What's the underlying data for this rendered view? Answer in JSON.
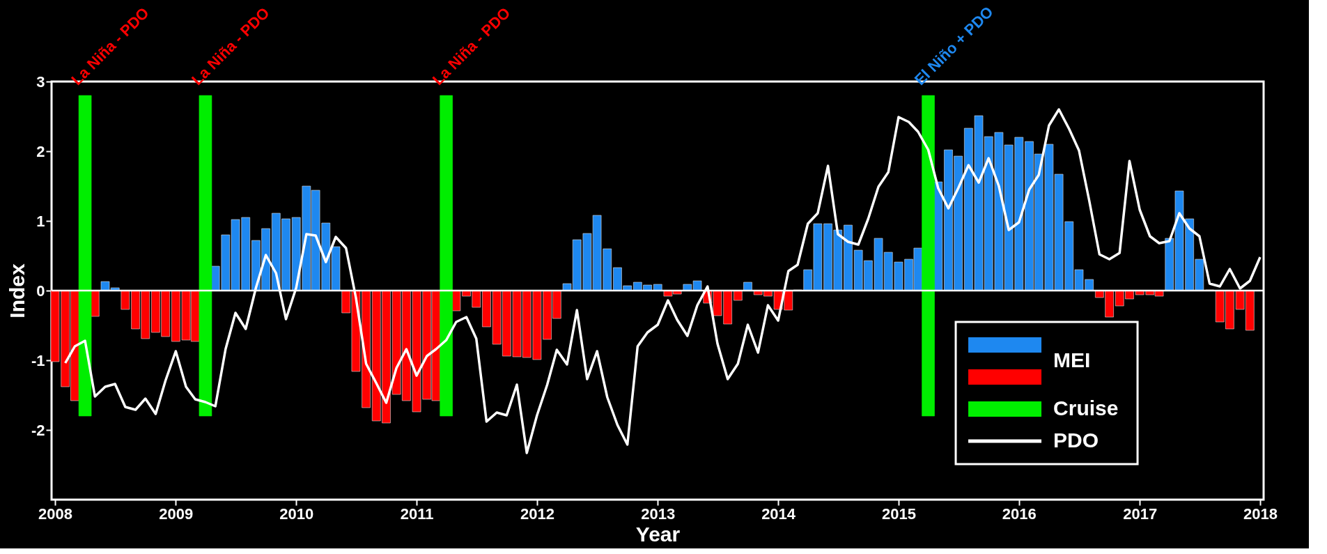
{
  "chart_data": {
    "type": "bar",
    "xlabel": "Year",
    "ylabel": "Index",
    "x": [
      "2008-01",
      "2008-02",
      "2008-03",
      "2008-04",
      "2008-05",
      "2008-06",
      "2008-07",
      "2008-08",
      "2008-09",
      "2008-10",
      "2008-11",
      "2008-12",
      "2009-01",
      "2009-02",
      "2009-03",
      "2009-04",
      "2009-05",
      "2009-06",
      "2009-07",
      "2009-08",
      "2009-09",
      "2009-10",
      "2009-11",
      "2009-12",
      "2010-01",
      "2010-02",
      "2010-03",
      "2010-04",
      "2010-05",
      "2010-06",
      "2010-07",
      "2010-08",
      "2010-09",
      "2010-10",
      "2010-11",
      "2010-12",
      "2011-01",
      "2011-02",
      "2011-03",
      "2011-04",
      "2011-05",
      "2011-06",
      "2011-07",
      "2011-08",
      "2011-09",
      "2011-10",
      "2011-11",
      "2011-12",
      "2012-01",
      "2012-02",
      "2012-03",
      "2012-04",
      "2012-05",
      "2012-06",
      "2012-07",
      "2012-08",
      "2012-09",
      "2012-10",
      "2012-11",
      "2012-12",
      "2013-01",
      "2013-02",
      "2013-03",
      "2013-04",
      "2013-05",
      "2013-06",
      "2013-07",
      "2013-08",
      "2013-09",
      "2013-10",
      "2013-11",
      "2013-12",
      "2014-01",
      "2014-02",
      "2014-03",
      "2014-04",
      "2014-05",
      "2014-06",
      "2014-07",
      "2014-08",
      "2014-09",
      "2014-10",
      "2014-11",
      "2014-12",
      "2015-01",
      "2015-02",
      "2015-03",
      "2015-04",
      "2015-05",
      "2015-06",
      "2015-07",
      "2015-08",
      "2015-09",
      "2015-10",
      "2015-11",
      "2015-12",
      "2016-01",
      "2016-02",
      "2016-03",
      "2016-04",
      "2016-05",
      "2016-06",
      "2016-07",
      "2016-08",
      "2016-09",
      "2016-10",
      "2016-11",
      "2016-12",
      "2017-01",
      "2017-02",
      "2017-03",
      "2017-04",
      "2017-05",
      "2017-06",
      "2017-07",
      "2017-08",
      "2017-09",
      "2017-10",
      "2017-11",
      "2017-12",
      "2018-01"
    ],
    "series": [
      {
        "name": "MEI",
        "color": "#1e88f0",
        "values": [
          null,
          null,
          null,
          null,
          null,
          0.13,
          0.04,
          null,
          null,
          null,
          null,
          null,
          null,
          null,
          null,
          null,
          0.35,
          0.8,
          1.02,
          1.05,
          0.72,
          0.89,
          1.11,
          1.03,
          1.05,
          1.5,
          1.44,
          0.97,
          0.63,
          null,
          null,
          null,
          null,
          null,
          null,
          null,
          null,
          null,
          null,
          null,
          null,
          null,
          null,
          null,
          null,
          null,
          null,
          null,
          null,
          null,
          null,
          0.1,
          0.73,
          0.82,
          1.08,
          0.6,
          0.33,
          0.07,
          0.12,
          0.08,
          0.09,
          null,
          null,
          0.09,
          0.14,
          null,
          null,
          null,
          null,
          0.12,
          null,
          null,
          null,
          null,
          0.01,
          0.3,
          0.96,
          0.96,
          0.87,
          0.94,
          0.58,
          0.43,
          0.75,
          0.55,
          0.41,
          0.45,
          0.61,
          null,
          1.56,
          2.02,
          1.93,
          2.33,
          2.51,
          2.21,
          2.27,
          2.09,
          2.2,
          2.14,
          1.96,
          2.1,
          1.67,
          0.99,
          0.3,
          0.16,
          null,
          null,
          null,
          null,
          null,
          null,
          null,
          0.75,
          1.43,
          1.03,
          0.45,
          0.01,
          null,
          null,
          null,
          null,
          null
        ]
      },
      {
        "color": "#ff0000",
        "values": [
          -1.02,
          -1.38,
          -1.58,
          null,
          -0.37,
          null,
          null,
          -0.27,
          -0.55,
          -0.69,
          -0.6,
          -0.66,
          -0.73,
          -0.71,
          -0.73,
          null,
          null,
          null,
          null,
          null,
          null,
          null,
          null,
          null,
          null,
          null,
          null,
          null,
          null,
          -0.32,
          -1.16,
          -1.68,
          -1.87,
          -1.9,
          -1.49,
          -1.58,
          -1.74,
          -1.56,
          -1.58,
          null,
          -0.29,
          -0.08,
          -0.24,
          -0.52,
          -0.77,
          -0.94,
          -0.95,
          -0.96,
          -0.99,
          -0.7,
          -0.4,
          null,
          null,
          null,
          null,
          null,
          null,
          null,
          null,
          null,
          null,
          -0.08,
          -0.05,
          null,
          null,
          -0.18,
          -0.36,
          -0.48,
          -0.14,
          null,
          -0.06,
          -0.08,
          -0.27,
          -0.28,
          null,
          null,
          null,
          null,
          null,
          null,
          null,
          null,
          null,
          null,
          null,
          null,
          null,
          null,
          null,
          null,
          null,
          null,
          null,
          null,
          null,
          null,
          null,
          null,
          null,
          null,
          null,
          null,
          null,
          null,
          -0.1,
          -0.38,
          -0.22,
          -0.12,
          -0.06,
          -0.06,
          -0.08,
          null,
          null,
          null,
          null,
          null,
          -0.45,
          -0.55,
          -0.27,
          -0.57,
          null
        ]
      },
      {
        "name": "Cruise",
        "type": "bar",
        "color": "#00ee00",
        "x": [
          "2008-04",
          "2009-04",
          "2011-04",
          "2015-04"
        ],
        "base": [
          -1.8,
          -1.8,
          -1.8,
          -1.8
        ],
        "values": [
          4.6,
          4.6,
          4.6,
          4.6
        ]
      },
      {
        "name": "PDO",
        "type": "line",
        "color": "#ffffff",
        "values": [
          null,
          -1.04,
          -0.8,
          -0.72,
          -1.52,
          -1.38,
          -1.34,
          -1.67,
          -1.71,
          -1.55,
          -1.77,
          -1.29,
          -0.87,
          -1.38,
          -1.56,
          -1.6,
          -1.66,
          -0.84,
          -0.32,
          -0.55,
          0.04,
          0.51,
          0.25,
          -0.41,
          0.04,
          0.81,
          0.79,
          0.41,
          0.77,
          0.61,
          -0.1,
          -1.05,
          -1.33,
          -1.61,
          -1.11,
          -0.84,
          -1.22,
          -0.94,
          -0.84,
          -0.71,
          -0.45,
          -0.38,
          -0.69,
          -1.88,
          -1.75,
          -1.79,
          -1.35,
          -2.33,
          -1.79,
          -1.35,
          -0.85,
          -1.06,
          -0.28,
          -1.27,
          -0.87,
          -1.53,
          -1.93,
          -2.21,
          -0.8,
          -0.6,
          -0.49,
          -0.14,
          -0.42,
          -0.65,
          -0.21,
          0.06,
          -0.76,
          -1.27,
          -1.05,
          -0.49,
          -0.89,
          -0.21,
          -0.43,
          0.28,
          0.37,
          0.96,
          1.11,
          1.79,
          0.81,
          0.7,
          0.66,
          1.03,
          1.49,
          1.7,
          2.49,
          2.42,
          2.28,
          2.02,
          1.47,
          1.18,
          1.47,
          1.8,
          1.55,
          1.9,
          1.5,
          0.87,
          0.98,
          1.45,
          1.66,
          2.37,
          2.6,
          2.32,
          2.01,
          1.29,
          0.52,
          0.45,
          0.54,
          1.86,
          1.16,
          0.78,
          0.68,
          0.71,
          1.11,
          0.89,
          0.78,
          0.1,
          0.06,
          0.31,
          0.03,
          0.14,
          0.48
        ]
      }
    ],
    "xlim": [
      "2008",
      "2018"
    ],
    "xticks": [
      "2008",
      "2009",
      "2010",
      "2011",
      "2012",
      "2013",
      "2014",
      "2015",
      "2016",
      "2017",
      "2018"
    ],
    "ylim": [
      -3,
      3
    ],
    "yticks": [
      -2,
      -1,
      0,
      1,
      2,
      3
    ],
    "ref_lines": [
      {
        "axis": "y",
        "value": 0,
        "color": "#ffffff"
      }
    ],
    "annotations": [
      "La Niña - PDO",
      "La Niña - PDO",
      "La Niña - PDO",
      "El Niño + PDO"
    ],
    "legend": "bottom right",
    "grid": false
  }
}
